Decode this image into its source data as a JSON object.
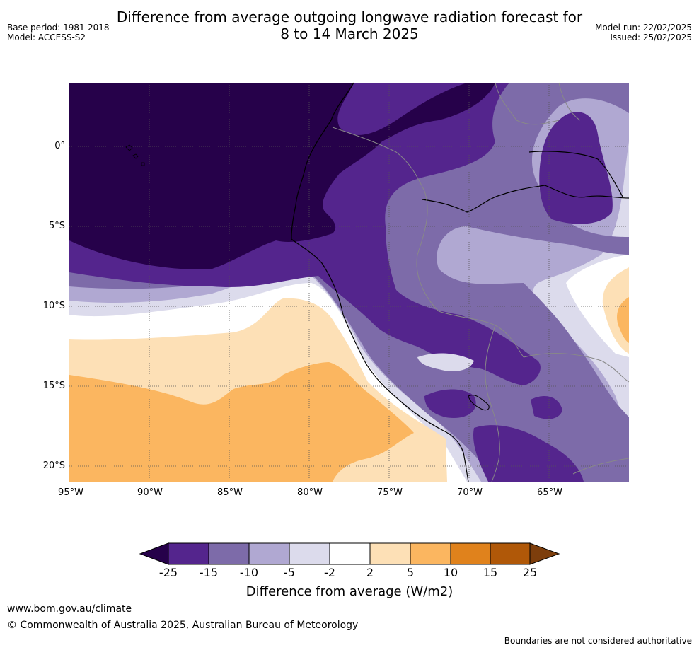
{
  "header": {
    "title_line1": "Difference from average outgoing longwave radiation forecast for",
    "title_line2": "8 to 14 March 2025",
    "base_period": "Base period: 1981-2018",
    "model": "Model: ACCESS-S2",
    "model_run": "Model run: 22/02/2025",
    "issued": "Issued: 25/02/2025"
  },
  "map": {
    "region": "Western South America and eastern Pacific",
    "lon_range": [
      -95,
      -60
    ],
    "lat_range": [
      -21,
      4
    ],
    "lat_ticks": [
      "0°",
      "5°S",
      "10°S",
      "15°S",
      "20°S"
    ],
    "lon_ticks": [
      "95°W",
      "90°W",
      "85°W",
      "80°W",
      "75°W",
      "70°W",
      "65°W"
    ],
    "gridlines": "dotted"
  },
  "legend": {
    "labels": [
      "-25",
      "-15",
      "-10",
      "-5",
      "-2",
      "2",
      "5",
      "10",
      "15",
      "25"
    ],
    "colors": [
      "#26014a",
      "#54258d",
      "#7d6ba9",
      "#b0a8d2",
      "#dcdbec",
      "#ffffff",
      "#fde0b6",
      "#fbb660",
      "#e0821c",
      "#b05808",
      "#7d3e0c"
    ],
    "title": "Difference from average (W/m2)"
  },
  "footer": {
    "url": "www.bom.gov.au/climate",
    "copyright": "© Commonwealth of Australia 2025, Australian Bureau of Meteorology",
    "disclaimer": "Boundaries are not considered authoritative"
  }
}
